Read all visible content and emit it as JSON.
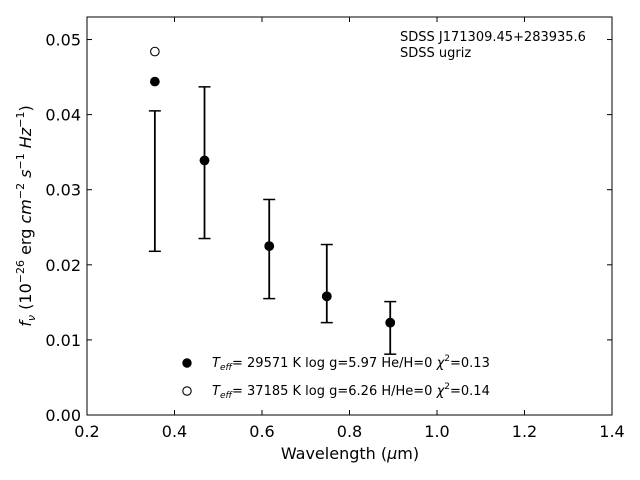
{
  "chart_data": {
    "type": "scatter",
    "annotation_lines": [
      "SDSS J171309.45+283935.6",
      "SDSS ugriz"
    ],
    "xlabel": {
      "prefix": "Wavelength (",
      "mu": "μ",
      "suffix": "m)"
    },
    "ylabel": {
      "f": "f",
      "f_sub": "ν",
      "unit_open": " (10",
      "exp1": "−26",
      "erg": " erg ",
      "cm": "cm",
      "exp2": "−2",
      "s": " s",
      "exp3": "−1",
      "hz": " Hz",
      "exp4": "−1",
      "unit_close": ")"
    },
    "xlim": [
      0.2,
      1.4
    ],
    "ylim": [
      0.0,
      0.053
    ],
    "x_ticks": [
      "0.2",
      "0.4",
      "0.6",
      "0.8",
      "1.0",
      "1.2",
      "1.4"
    ],
    "x_tick_values": [
      0.2,
      0.4,
      0.6,
      0.8,
      1.0,
      1.2,
      1.4
    ],
    "y_ticks": [
      "0.00",
      "0.01",
      "0.02",
      "0.03",
      "0.04",
      "0.05"
    ],
    "y_tick_values": [
      0.0,
      0.01,
      0.02,
      0.03,
      0.04,
      0.05
    ],
    "observed_errorbars": [
      {
        "x": 0.3551,
        "y_low": 0.0218,
        "y_high": 0.0405
      },
      {
        "x": 0.4686,
        "y_low": 0.0235,
        "y_high": 0.0437
      },
      {
        "x": 0.6165,
        "y_low": 0.0155,
        "y_high": 0.0287
      },
      {
        "x": 0.7481,
        "y_low": 0.0123,
        "y_high": 0.0227
      },
      {
        "x": 0.8931,
        "y_low": 0.0081,
        "y_high": 0.0151
      }
    ],
    "series": [
      {
        "marker": "filled-circle",
        "legend": {
          "teff": "T",
          "teff_sub": "eff",
          "text": "= 29571 K  log g=5.97  He/H=0  ",
          "chi": "χ",
          "chi_sup": "2",
          "chi_val": "=0.13"
        },
        "points": [
          {
            "x": 0.3551,
            "y": 0.0444
          },
          {
            "x": 0.4686,
            "y": 0.0339
          },
          {
            "x": 0.6165,
            "y": 0.0225
          },
          {
            "x": 0.7481,
            "y": 0.0158
          },
          {
            "x": 0.8931,
            "y": 0.0123
          }
        ]
      },
      {
        "marker": "open-circle",
        "legend": {
          "teff": "T",
          "teff_sub": "eff",
          "text": "= 37185 K  log g=6.26  H/He=0  ",
          "chi": "χ",
          "chi_sup": "2",
          "chi_val": "=0.14"
        },
        "points": [
          {
            "x": 0.3551,
            "y": 0.0484
          },
          {
            "x": 0.4686,
            "y": 0.0339
          },
          {
            "x": 0.6165,
            "y": 0.0225
          },
          {
            "x": 0.7481,
            "y": 0.0158
          },
          {
            "x": 0.8931,
            "y": 0.0123
          }
        ]
      }
    ]
  }
}
